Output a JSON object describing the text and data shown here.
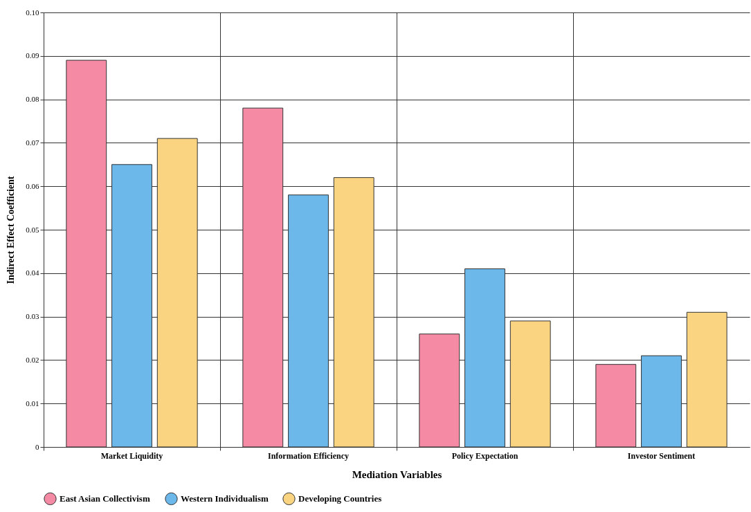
{
  "chart_data": {
    "type": "bar",
    "xlabel": "Mediation Variables",
    "ylabel": "Indirect Effect Coefficient",
    "categories": [
      "Market Liquidity",
      "Information Efficiency",
      "Policy Expectation",
      "Investor Sentiment"
    ],
    "series": [
      {
        "name": "East Asian Collectivism",
        "color": "#f48aa4",
        "values": [
          0.089,
          0.078,
          0.026,
          0.019
        ]
      },
      {
        "name": "Western Individualism",
        "color": "#6cb8ea",
        "values": [
          0.065,
          0.058,
          0.041,
          0.021
        ]
      },
      {
        "name": "Developing Countries",
        "color": "#fad480",
        "values": [
          0.071,
          0.062,
          0.029,
          0.031
        ]
      }
    ],
    "ylim": [
      0,
      0.1
    ],
    "yticks": [
      0,
      0.01,
      0.02,
      0.03,
      0.04,
      0.05,
      0.06,
      0.07,
      0.08,
      0.09,
      {
        "value": 0.1,
        "label": "0.10"
      }
    ],
    "grid": true,
    "legend": "bottom"
  }
}
